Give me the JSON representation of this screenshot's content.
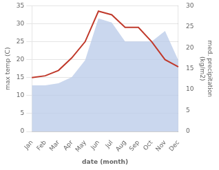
{
  "chart_data": {
    "type": "line",
    "categories": [
      "Jan",
      "Feb",
      "Mar",
      "Apr",
      "May",
      "Jun",
      "Jul",
      "Aug",
      "Sep",
      "Oct",
      "Nov",
      "Dec"
    ],
    "series": [
      {
        "type": "area",
        "color": "#b8c9e8",
        "axis": "y2",
        "values": [
          11.0,
          11.0,
          11.5,
          13.0,
          17.0,
          27.0,
          26.0,
          21.5,
          21.5,
          21.5,
          24.0,
          17.0
        ]
      },
      {
        "type": "line",
        "color": "#c0392b",
        "values": [
          15.0,
          15.5,
          17.0,
          20.5,
          25.0,
          33.5,
          32.5,
          29.0,
          29.0,
          25.0,
          20.0,
          18.0
        ]
      }
    ],
    "xlabel": "date (month)",
    "ylabel": "max temp (C)",
    "y2label": "med. precipitation\n(kg/m2)",
    "ylim": [
      0,
      35
    ],
    "yticks": [
      0,
      5,
      10,
      15,
      20,
      25,
      30,
      35
    ],
    "y2lim": [
      0,
      30
    ],
    "y2ticks": [
      0,
      5,
      10,
      15,
      20,
      25,
      30
    ],
    "grid": true
  }
}
